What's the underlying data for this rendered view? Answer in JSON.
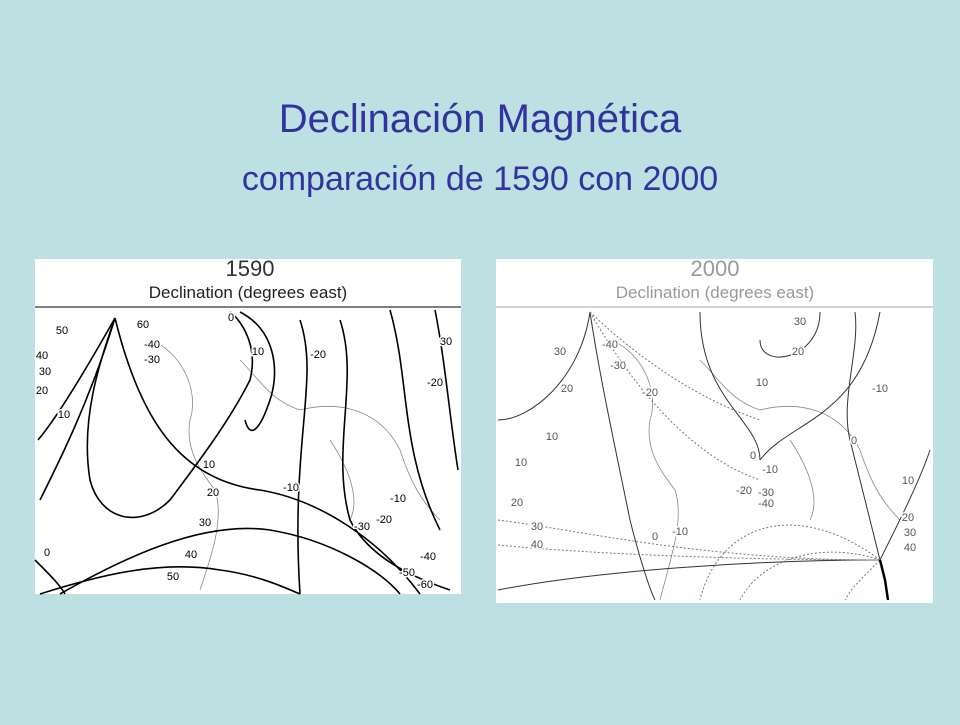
{
  "header": {
    "title": "Declinación Magnética",
    "subtitle": "comparación de 1590 con 2000"
  },
  "panels": [
    {
      "year": "1590",
      "caption": "Declination (degrees east)",
      "contour_labels": [
        60,
        50,
        -40,
        -30,
        40,
        30,
        20,
        10,
        0,
        10,
        -20,
        -20,
        30,
        10,
        20,
        -10,
        30,
        40,
        50,
        -10,
        -20,
        -30,
        -40,
        -50,
        -60,
        0
      ]
    },
    {
      "year": "2000",
      "caption": "Declination (degrees east)",
      "contour_labels": [
        30,
        -40,
        -30,
        -20,
        20,
        10,
        10,
        20,
        30,
        40,
        30,
        20,
        10,
        -10,
        0,
        0,
        -10,
        -20,
        -30,
        -40,
        0,
        -10,
        10,
        20,
        30,
        40
      ]
    }
  ]
}
